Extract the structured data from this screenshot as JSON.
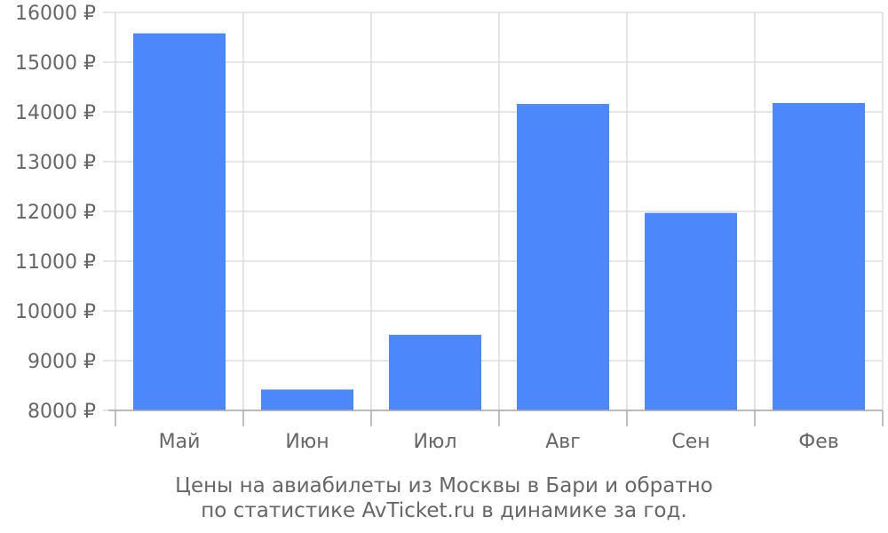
{
  "chart_data": {
    "type": "bar",
    "categories": [
      "Май",
      "Июн",
      "Июл",
      "Авг",
      "Сен",
      "Фев"
    ],
    "values": [
      15580,
      8420,
      9520,
      14160,
      11970,
      14180
    ],
    "ylim": [
      8000,
      16000
    ],
    "y_ticks": [
      8000,
      9000,
      10000,
      11000,
      12000,
      13000,
      14000,
      15000,
      16000
    ],
    "y_tick_suffix": " ₽",
    "grid": true,
    "bar_color": "#4d88fa",
    "grid_color": "#dddddd",
    "axis_color": "#aaaaaa",
    "text_color": "#666666"
  },
  "caption": {
    "line1": "Цены на авиабилеты из Москвы в Бари и обратно",
    "line2": "по статистике AvTicket.ru в динамике за год."
  }
}
